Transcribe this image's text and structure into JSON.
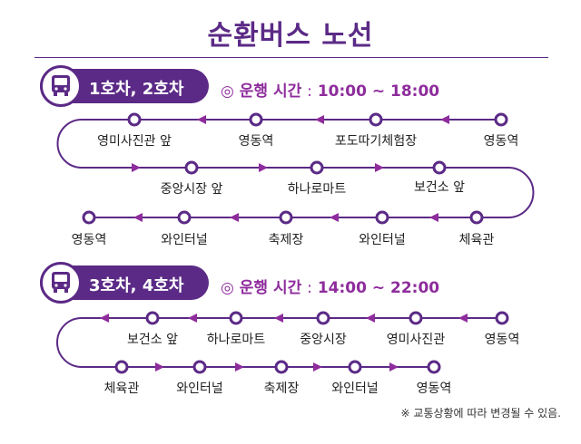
{
  "title": "순환버스 노선",
  "colors": {
    "primary": "#5b2a86",
    "accent": "#8e2c9c"
  },
  "routes": [
    {
      "label": "1호차, 2호차",
      "hours_label": "◎ 운행 시간",
      "hours_sep": ":",
      "hours_value": "10:00 ~ 18:00",
      "icon": "bus-icon",
      "stops": [
        "영동역",
        "포도따기체험장",
        "영동역",
        "영미사진관 앞",
        "중앙시장 앞",
        "하나로마트",
        "보건소 앞",
        "체육관",
        "와인터널",
        "축제장",
        "와인터널",
        "영동역"
      ]
    },
    {
      "label": "3호차, 4호차",
      "hours_label": "◎ 운행 시간",
      "hours_sep": ":",
      "hours_value": "14:00 ~ 22:00",
      "icon": "bus-icon",
      "stops": [
        "영동역",
        "영미사진관",
        "중앙시장",
        "하나로마트",
        "보건소 앞",
        "체육관",
        "와인터널",
        "축제장",
        "와인터널",
        "영동역"
      ]
    }
  ],
  "note": "※ 교통상황에 따라 변경될 수 있음."
}
